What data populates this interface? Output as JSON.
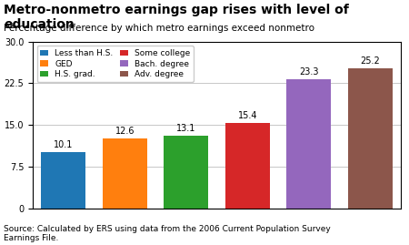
{
  "chart_data": {
    "type": "bar",
    "title": "Metro-nonmetro earnings gap rises with level of education",
    "subtitle": "Percentage difference by which metro earnings exceed nonmetro",
    "source": "Source: Calculated by ERS using data from the 2006 Current Population Survey\nEarnings File.",
    "categories": [
      "Less than H.S.",
      "GED",
      "H.S. grad.",
      "Some college",
      "Bach. degree",
      "Adv. degree"
    ],
    "values": [
      10.1,
      12.6,
      13.1,
      15.4,
      23.3,
      25.2
    ],
    "ylim": [
      0,
      30
    ],
    "yticks": [
      0,
      7.5,
      {
        "value": 15,
        "label": "15.0"
      },
      22.5,
      {
        "value": 30,
        "label": "30.0"
      }
    ],
    "grid": true,
    "legend": "upper left",
    "data_labels": true,
    "tick_labels": "y"
  }
}
